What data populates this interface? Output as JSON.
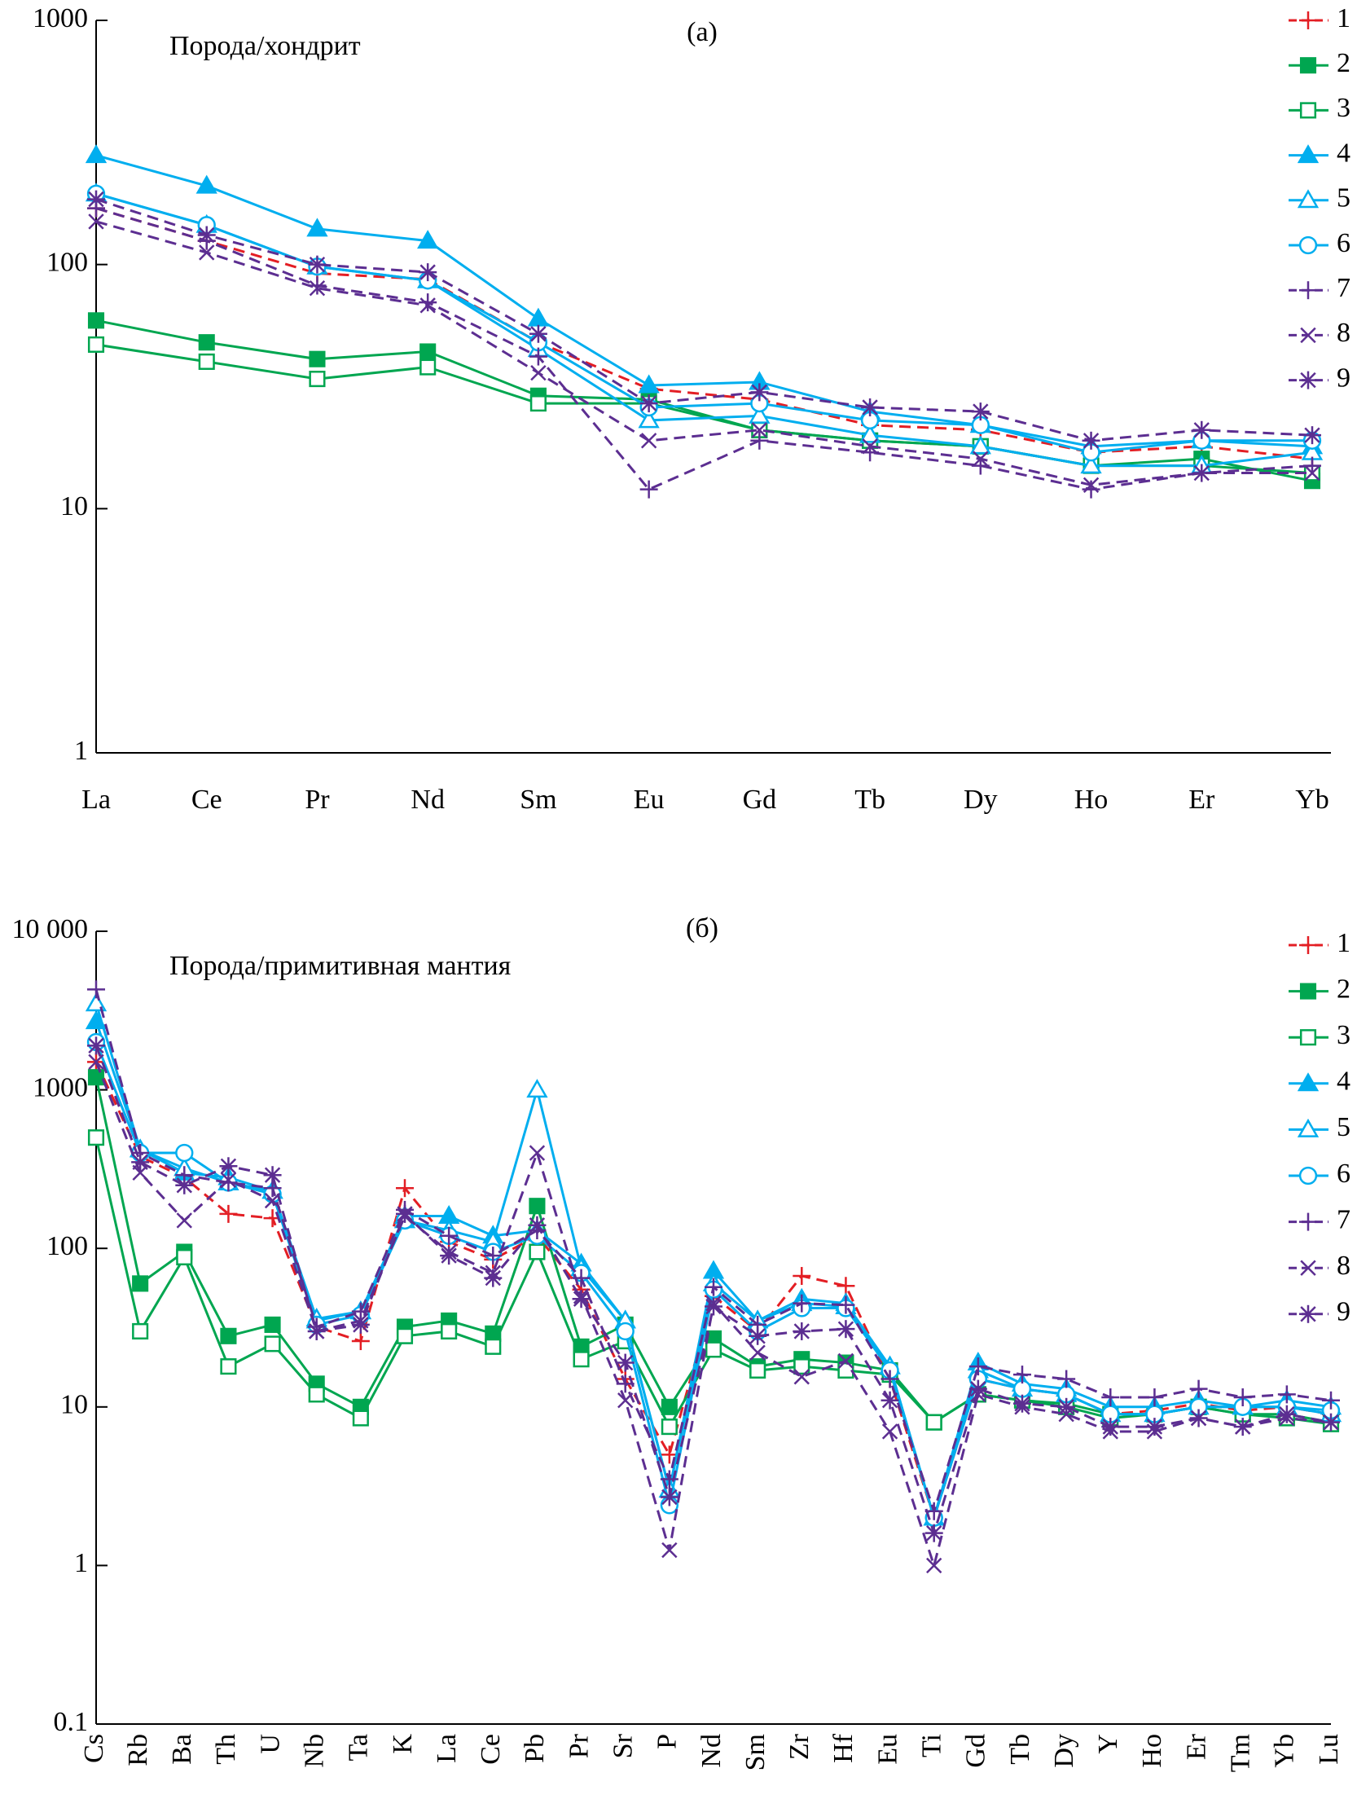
{
  "chart_data": [
    {
      "type": "line",
      "title": "(а)",
      "annotation": "Порода/хондрит",
      "log_scale": true,
      "legend": "upper right",
      "categories": [
        "La",
        "Ce",
        "Pr",
        "Nd",
        "Sm",
        "Eu",
        "Gd",
        "Tb",
        "Dy",
        "Ho",
        "Er",
        "Yb"
      ],
      "ylim": [
        1,
        1000
      ],
      "yticks": [
        1,
        10,
        100,
        1000
      ],
      "series": [
        {
          "name": "1",
          "color": "#e31e24",
          "marker": "plus",
          "dashed": true,
          "values": [
            170,
            125,
            92,
            87,
            48,
            31,
            28,
            22,
            21,
            17,
            18,
            16
          ]
        },
        {
          "name": "2",
          "color": "#00a650",
          "marker": "square-filled",
          "dashed": false,
          "values": [
            59,
            48,
            41,
            44,
            29,
            28,
            21,
            19,
            18,
            15,
            16,
            13
          ]
        },
        {
          "name": "3",
          "color": "#00a650",
          "marker": "square-open",
          "dashed": false,
          "values": [
            47,
            40,
            34,
            38,
            27,
            27,
            21,
            19,
            18,
            15,
            15,
            14
          ]
        },
        {
          "name": "4",
          "color": "#00aeef",
          "marker": "triangle-filled",
          "dashed": false,
          "values": [
            280,
            210,
            140,
            125,
            60,
            32,
            33,
            25,
            22,
            18,
            19,
            18
          ]
        },
        {
          "name": "5",
          "color": "#00aeef",
          "marker": "triangle-open",
          "dashed": false,
          "values": [
            195,
            145,
            98,
            86,
            45,
            23,
            24,
            20,
            18,
            15,
            15,
            17
          ]
        },
        {
          "name": "6",
          "color": "#00aeef",
          "marker": "circle-open",
          "dashed": false,
          "values": [
            195,
            145,
            98,
            86,
            48,
            26,
            27,
            23,
            22,
            17,
            19,
            19
          ]
        },
        {
          "name": "7",
          "color": "#5c2e91",
          "marker": "plus",
          "dashed": true,
          "values": [
            170,
            125,
            82,
            70,
            42,
            12,
            19,
            17,
            15,
            12,
            14,
            15
          ]
        },
        {
          "name": "8",
          "color": "#5c2e91",
          "marker": "x",
          "dashed": true,
          "values": [
            150,
            112,
            80,
            68,
            36,
            19,
            21,
            18,
            16,
            12.5,
            14,
            14
          ]
        },
        {
          "name": "9",
          "color": "#5c2e91",
          "marker": "asterisk",
          "dashed": true,
          "values": [
            185,
            132,
            100,
            93,
            52,
            27,
            30,
            26,
            25,
            19,
            21,
            20
          ]
        }
      ]
    },
    {
      "type": "line",
      "title": "(б)",
      "annotation": "Порода/примитивная мантия",
      "log_scale": true,
      "legend": "upper right",
      "categories": [
        "Cs",
        "Rb",
        "Ba",
        "Th",
        "U",
        "Nb",
        "Ta",
        "K",
        "La",
        "Ce",
        "Pb",
        "Pr",
        "Sr",
        "P",
        "Nd",
        "Sm",
        "Zr",
        "Hf",
        "Eu",
        "Ti",
        "Gd",
        "Tb",
        "Dy",
        "Y",
        "Ho",
        "Er",
        "Tm",
        "Yb",
        "Lu"
      ],
      "ylim": [
        0.1,
        10000
      ],
      "yticks": [
        0.1,
        1,
        10,
        100,
        1000,
        {
          "value": 10000,
          "label": "10 000"
        }
      ],
      "series": [
        {
          "name": "1",
          "color": "#e31e24",
          "marker": "plus",
          "dashed": true,
          "values": [
            1500,
            380,
            280,
            165,
            155,
            32,
            26,
            240,
            110,
            85,
            120,
            55,
            15,
            5,
            50,
            30,
            67,
            58,
            15,
            2,
            15,
            13,
            12,
            9,
            9.5,
            10.5,
            9.5,
            10,
            9
          ]
        },
        {
          "name": "2",
          "color": "#00a650",
          "marker": "square-filled",
          "dashed": false,
          "values": [
            1200,
            60,
            95,
            28,
            33,
            14,
            10,
            32,
            35,
            29,
            185,
            24,
            33,
            10,
            27,
            18,
            20,
            19,
            17,
            8,
            12,
            11,
            10.5,
            9,
            9,
            10,
            9,
            9,
            8
          ]
        },
        {
          "name": "3",
          "color": "#00a650",
          "marker": "square-open",
          "dashed": false,
          "values": [
            500,
            30,
            88,
            18,
            25,
            12,
            8.5,
            28,
            30,
            24,
            95,
            20,
            26,
            7.5,
            23,
            17,
            18,
            17,
            16,
            8,
            12,
            11,
            10,
            8.5,
            9,
            10,
            9,
            8.5,
            7.8
          ]
        },
        {
          "name": "4",
          "color": "#00aeef",
          "marker": "triangle-filled",
          "dashed": false,
          "values": [
            2700,
            420,
            300,
            280,
            230,
            35,
            40,
            160,
            160,
            120,
            130,
            80,
            35,
            3,
            72,
            35,
            48,
            45,
            18,
            2,
            19,
            14,
            13,
            10,
            10,
            11,
            10,
            11,
            10
          ]
        },
        {
          "name": "5",
          "color": "#00aeef",
          "marker": "triangle-open",
          "dashed": false,
          "values": [
            3500,
            420,
            320,
            260,
            230,
            36,
            40,
            150,
            130,
            110,
            1000,
            75,
            35,
            3,
            60,
            35,
            45,
            43,
            18,
            2,
            17,
            13,
            12,
            9,
            9,
            10,
            10,
            10,
            9
          ]
        },
        {
          "name": "6",
          "color": "#00aeef",
          "marker": "circle-open",
          "dashed": false,
          "values": [
            2000,
            400,
            400,
            260,
            220,
            33,
            38,
            150,
            120,
            95,
            120,
            70,
            30,
            2.4,
            55,
            30,
            42,
            42,
            17,
            2,
            15,
            13,
            12,
            9,
            9,
            10,
            10,
            10,
            9.5
          ]
        },
        {
          "name": "7",
          "color": "#5c2e91",
          "marker": "plus",
          "dashed": true,
          "values": [
            4300,
            400,
            290,
            260,
            240,
            32,
            40,
            175,
            120,
            90,
            130,
            65,
            14,
            3.5,
            57,
            33,
            45,
            44,
            15,
            2.2,
            18,
            16,
            15,
            11.5,
            11.5,
            13,
            11.5,
            12,
            11
          ]
        },
        {
          "name": "8",
          "color": "#5c2e91",
          "marker": "x",
          "dashed": true,
          "values": [
            1500,
            300,
            150,
            270,
            200,
            30,
            35,
            160,
            95,
            70,
            400,
            50,
            11,
            1.25,
            45,
            22,
            15.5,
            19.5,
            7,
            1,
            12,
            10,
            9,
            7,
            7,
            8.5,
            7.5,
            8.5,
            8
          ]
        },
        {
          "name": "9",
          "color": "#5c2e91",
          "marker": "asterisk",
          "dashed": true,
          "values": [
            1900,
            350,
            250,
            330,
            290,
            30,
            33,
            165,
            90,
            65,
            140,
            48,
            19,
            2.7,
            43,
            28,
            30,
            31,
            11,
            1.6,
            13,
            10.5,
            10,
            7.5,
            7.5,
            8.5,
            7.5,
            9,
            8
          ]
        }
      ]
    }
  ]
}
